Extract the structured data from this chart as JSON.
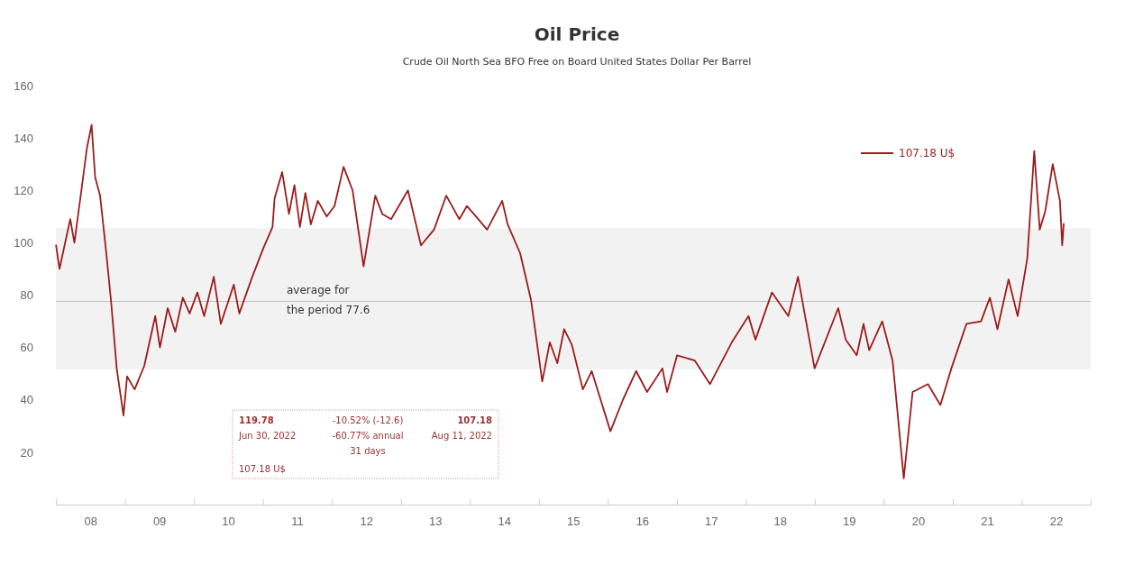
{
  "chart_data": {
    "type": "line",
    "title": "Oil Price",
    "subtitle": "Crude Oil North Sea BFO Free on Board United States Dollar Per Barrel",
    "x": [
      "2008-01-02",
      "2008-01-20",
      "2008-03-17",
      "2008-04-08",
      "2008-05-15",
      "2008-06-13",
      "2008-07-08",
      "2008-07-27",
      "2008-08-22",
      "2008-09-24",
      "2008-10-20",
      "2008-11-18",
      "2008-12-24",
      "2009-01-12",
      "2009-02-21",
      "2009-04-13",
      "2009-06-10",
      "2009-07-05",
      "2009-08-15",
      "2009-09-24",
      "2009-11-03",
      "2009-12-09",
      "2010-01-19",
      "2010-02-24",
      "2010-04-16",
      "2010-05-23",
      "2010-07-31",
      "2010-08-29",
      "2010-11-06",
      "2011-01-04",
      "2011-02-21",
      "2011-03-04",
      "2011-04-13",
      "2011-05-19",
      "2011-06-17",
      "2011-07-16",
      "2011-08-14",
      "2011-09-12",
      "2011-10-19",
      "2011-12-05",
      "2012-01-15",
      "2012-03-03",
      "2012-04-20",
      "2012-06-17",
      "2012-08-18",
      "2012-09-24",
      "2012-11-10",
      "2013-02-07",
      "2013-04-17",
      "2013-06-25",
      "2013-08-29",
      "2013-11-06",
      "2013-12-16",
      "2014-02-03",
      "2014-04-02",
      "2014-06-21",
      "2014-07-20",
      "2014-09-24",
      "2014-11-21",
      "2015-01-19",
      "2015-02-28",
      "2015-04-09",
      "2015-05-15",
      "2015-06-25",
      "2015-08-22",
      "2015-10-08",
      "2016-01-15",
      "2016-03-21",
      "2016-05-30",
      "2016-07-27",
      "2016-10-16",
      "2016-11-10",
      "2017-01-02",
      "2017-04-06",
      "2017-06-25",
      "2017-10-19",
      "2018-01-15",
      "2018-02-21",
      "2018-05-19",
      "2018-08-14",
      "2018-10-04",
      "2018-12-31",
      "2019-05-05",
      "2019-06-14",
      "2019-08-11",
      "2019-09-16",
      "2019-10-16",
      "2019-12-24",
      "2020-02-17",
      "2020-03-17",
      "2020-04-16",
      "2020-06-02",
      "2020-08-22",
      "2020-10-27",
      "2020-12-24",
      "2021-03-14",
      "2021-05-30",
      "2021-07-16",
      "2021-08-25",
      "2021-10-23",
      "2021-12-10",
      "2022-01-30",
      "2022-03-08",
      "2022-04-06",
      "2022-05-05",
      "2022-06-14",
      "2022-07-22",
      "2022-08-03",
      "2022-08-11"
    ],
    "series": [
      {
        "name": "107.18 U$",
        "color": "#9b1c1c",
        "values": [
          99,
          90,
          109,
          100,
          120,
          136,
          145,
          125,
          118,
          96,
          77,
          52,
          34,
          49,
          44,
          53,
          72,
          60,
          75,
          66,
          79,
          73,
          81,
          72,
          87,
          69,
          84,
          73,
          87,
          98,
          106,
          117,
          127,
          111,
          122,
          106,
          119,
          107,
          116,
          110,
          114,
          129,
          120,
          91,
          118,
          111,
          109,
          120,
          99,
          105,
          118,
          109,
          114,
          110,
          105,
          116,
          107,
          96,
          78,
          47,
          62,
          54,
          67,
          61,
          44,
          51,
          28,
          40,
          51,
          43,
          52,
          43,
          57,
          55,
          46,
          62,
          72,
          63,
          81,
          72,
          87,
          52,
          75,
          63,
          57,
          69,
          59,
          70,
          55,
          33,
          10,
          43,
          46,
          38,
          52,
          69,
          70,
          79,
          67,
          86,
          72,
          94,
          135,
          105,
          112,
          130,
          116,
          99,
          107.18
        ]
      }
    ],
    "xlim": [
      "2008-01-01",
      "2023-01-01"
    ],
    "xticks": [
      {
        "value": "2008-07-01",
        "label": "08"
      },
      {
        "value": "2009-07-01",
        "label": "09"
      },
      {
        "value": "2010-07-01",
        "label": "10"
      },
      {
        "value": "2011-07-01",
        "label": "11"
      },
      {
        "value": "2012-07-01",
        "label": "12"
      },
      {
        "value": "2013-07-01",
        "label": "13"
      },
      {
        "value": "2014-07-01",
        "label": "14"
      },
      {
        "value": "2015-07-01",
        "label": "15"
      },
      {
        "value": "2016-07-01",
        "label": "16"
      },
      {
        "value": "2017-07-01",
        "label": "17"
      },
      {
        "value": "2018-07-01",
        "label": "18"
      },
      {
        "value": "2019-07-01",
        "label": "19"
      },
      {
        "value": "2020-07-01",
        "label": "20"
      },
      {
        "value": "2021-07-01",
        "label": "21"
      },
      {
        "value": "2022-07-01",
        "label": "22"
      },
      {
        "value": "2009-01-01",
        "label": null
      },
      {
        "value": "2010-01-01",
        "label": null
      },
      {
        "value": "2011-01-01",
        "label": null
      },
      {
        "value": "2012-01-01",
        "label": null
      },
      {
        "value": "2013-01-01",
        "label": null
      },
      {
        "value": "2014-01-01",
        "label": null
      },
      {
        "value": "2015-01-01",
        "label": null
      },
      {
        "value": "2016-01-01",
        "label": null
      },
      {
        "value": "2017-01-01",
        "label": null
      },
      {
        "value": "2018-01-01",
        "label": null
      },
      {
        "value": "2019-01-01",
        "label": null
      },
      {
        "value": "2020-01-01",
        "label": null
      },
      {
        "value": "2021-01-01",
        "label": null
      },
      {
        "value": "2022-01-01",
        "label": null
      }
    ],
    "ylim": [
      0,
      160
    ],
    "yticks": [
      20,
      40,
      60,
      80,
      100,
      120,
      140,
      160
    ],
    "bands": [
      {
        "axis": "y",
        "from": 51.7,
        "to": 105.5,
        "color": "#f2f2f2"
      }
    ],
    "ref_lines": [
      {
        "axis": "y",
        "value": 77.6,
        "label": "average for\nthe period 77.6",
        "color": "#bfbfbf"
      }
    ],
    "annotations": [
      "119.78",
      "Jun 30, 2022",
      "-10.52% (-12.6)",
      "-60.77% annual",
      "31 days",
      "107.18",
      "Aug 11, 2022",
      "107.18 U$"
    ],
    "legend": "top right",
    "grid": false,
    "marker": "none",
    "line_style": "solid"
  }
}
